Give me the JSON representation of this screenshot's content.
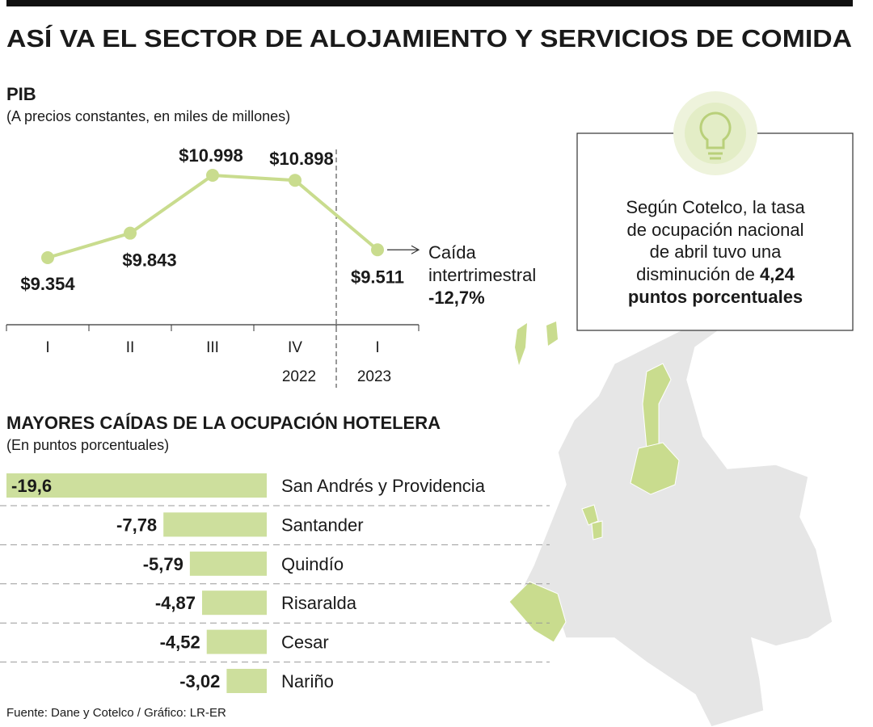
{
  "title": "ASÍ VA EL SECTOR DE ALOJAMIENTO Y SERVICIOS DE COMIDA",
  "source": "Fuente: Dane y Cotelco / Gráfico: LR-ER",
  "callout": {
    "lines": [
      "Según Cotelco, la tasa",
      "de ocupación nacional",
      "de abril tuvo una",
      "disminución de"
    ],
    "highlight": [
      "4,24",
      "puntos porcentuales"
    ]
  },
  "chart_data": [
    {
      "type": "line",
      "title": "PIB",
      "subtitle": "(A precios constantes, en miles de millones)",
      "categories": [
        "I",
        "II",
        "III",
        "IV",
        "I"
      ],
      "groups": [
        "2022",
        "2023"
      ],
      "values": [
        9354,
        9843,
        10998,
        10898,
        9511
      ],
      "value_labels": [
        "$9.354",
        "$9.843",
        "$10.998",
        "$10.898",
        "$9.511"
      ],
      "color": "#c9dc8e",
      "annotation": [
        "Caída",
        "intertrimestral",
        "-12,7%"
      ]
    },
    {
      "type": "hbar",
      "title": "MAYORES CAÍDAS DE LA OCUPACIÓN HOTELERA",
      "subtitle": "(En puntos porcentuales)",
      "categories": [
        "San Andrés y Providencia",
        "Santander",
        "Quindío",
        "Risaralda",
        "Cesar",
        "Nariño"
      ],
      "values": [
        -19.6,
        -7.78,
        -5.79,
        -4.87,
        -4.52,
        -3.02
      ],
      "value_labels": [
        "-19,6",
        "-7,78",
        "-5,79",
        "-4,87",
        "-4,52",
        "-3,02"
      ],
      "color": "#cddf9d"
    }
  ]
}
